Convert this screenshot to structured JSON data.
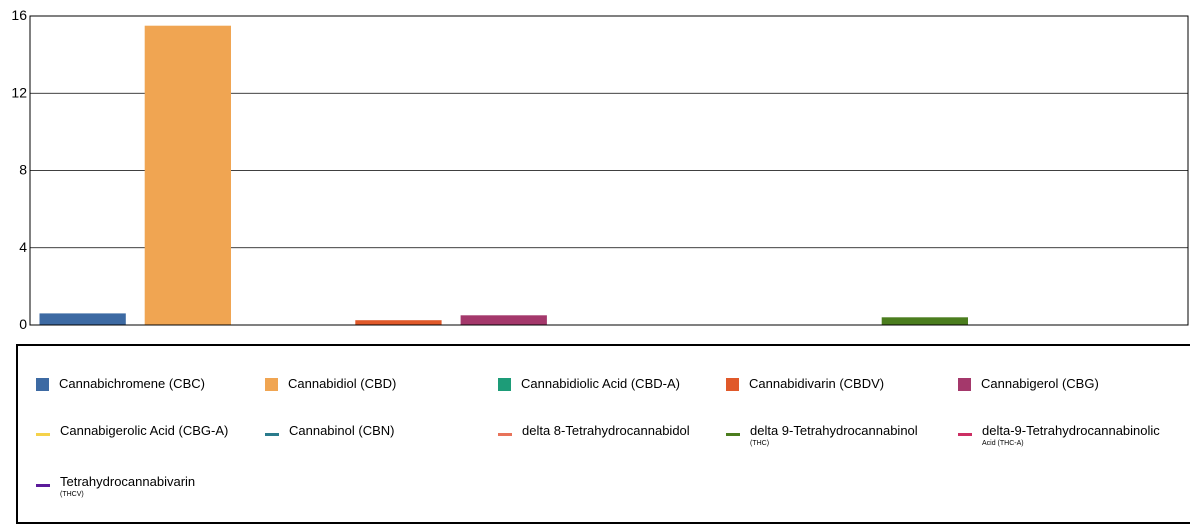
{
  "chart_data": {
    "type": "bar",
    "categories": [
      "Cannabichromene (CBC)",
      "Cannabidiol (CBD)",
      "Cannabidiolic Acid (CBD-A)",
      "Cannabidivarin (CBDV)",
      "Cannabigerol (CBG)",
      "Cannabigerolic Acid (CBG-A)",
      "Cannabinol (CBN)",
      "delta 8-Tetrahydrocannabidol",
      "delta 9-Tetrahydrocannabinol (THC)",
      "delta-9-Tetrahydrocannabinolic Acid (THC-A)",
      "Tetrahydrocannabivarin (THCV)"
    ],
    "values": [
      0.6,
      15.5,
      0,
      0.25,
      0.5,
      0,
      0,
      0,
      0.4,
      0,
      0
    ],
    "colors": [
      "#3d6aa3",
      "#f0a552",
      "#1d9c78",
      "#e0592a",
      "#a4386b",
      "#f5d24a",
      "#2a7b8c",
      "#e8735a",
      "#4b7d1e",
      "#cc2e63",
      "#5b1b9a"
    ],
    "ylim": [
      0,
      16
    ],
    "yticks": [
      "0",
      "4",
      "8",
      "12",
      "16"
    ],
    "grid": true,
    "title": "",
    "xlabel": "",
    "ylabel": ""
  },
  "legend": {
    "items": [
      {
        "label": "Cannabichromene (CBC)",
        "sub": "",
        "marker": "square",
        "color": "#3d6aa3"
      },
      {
        "label": "Cannabidiol (CBD)",
        "sub": "",
        "marker": "square",
        "color": "#f0a552"
      },
      {
        "label": "Cannabidiolic Acid (CBD-A)",
        "sub": "",
        "marker": "square",
        "color": "#1d9c78"
      },
      {
        "label": "Cannabidivarin (CBDV)",
        "sub": "",
        "marker": "square",
        "color": "#e0592a"
      },
      {
        "label": "Cannabigerol (CBG)",
        "sub": "",
        "marker": "square",
        "color": "#a4386b"
      },
      {
        "label": "Cannabigerolic Acid (CBG-A)",
        "sub": "",
        "marker": "line",
        "color": "#f5d24a"
      },
      {
        "label": "Cannabinol (CBN)",
        "sub": "",
        "marker": "line",
        "color": "#2a7b8c"
      },
      {
        "label": "delta 8-Tetrahydrocannabidol",
        "sub": "",
        "marker": "line",
        "color": "#e8735a"
      },
      {
        "label": "delta 9-Tetrahydrocannabinol",
        "sub": "(THC)",
        "marker": "line",
        "color": "#4b7d1e"
      },
      {
        "label": "delta-9-Tetrahydrocannabinolic",
        "sub": "Acid (THC-A)",
        "marker": "line",
        "color": "#cc2e63"
      },
      {
        "label": "Tetrahydrocannabivarin",
        "sub": "(THCV)",
        "marker": "line",
        "color": "#5b1b9a"
      }
    ]
  }
}
